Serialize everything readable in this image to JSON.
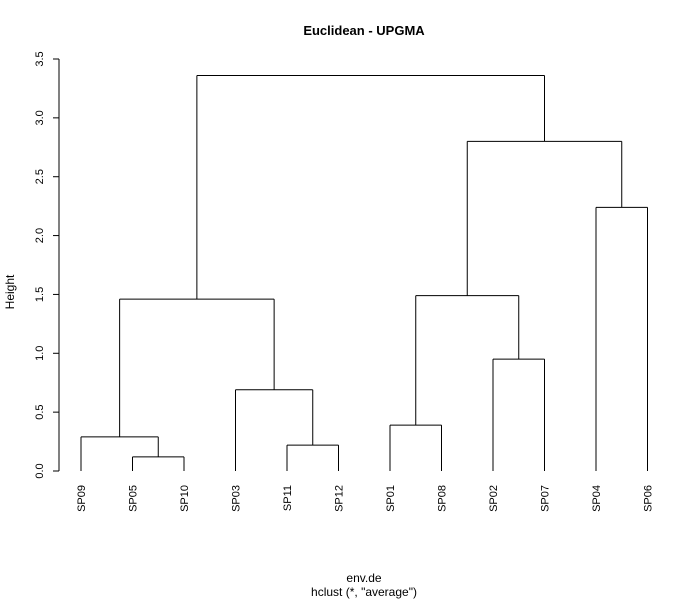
{
  "chart_data": {
    "type": "dendrogram",
    "title": "Euclidean - UPGMA",
    "xlabel": "env.de",
    "sublabel": "hclust (*, \"average\")",
    "ylabel": "Height",
    "ylim": [
      0,
      3.5
    ],
    "yticks": [
      0.0,
      0.5,
      1.0,
      1.5,
      2.0,
      2.5,
      3.0,
      3.5
    ],
    "ytick_labels": [
      "0.0",
      "0.5",
      "1.0",
      "1.5",
      "2.0",
      "2.5",
      "3.0",
      "3.5"
    ],
    "leaves": [
      "SP09",
      "SP05",
      "SP10",
      "SP03",
      "SP11",
      "SP12",
      "SP01",
      "SP08",
      "SP02",
      "SP07",
      "SP04",
      "SP06"
    ],
    "merges": [
      {
        "left": "SP05",
        "right": "SP10",
        "height": 0.12
      },
      {
        "left": "SP11",
        "right": "SP12",
        "height": 0.22
      },
      {
        "left": "SP09",
        "right": "SP05+SP10",
        "height": 0.29
      },
      {
        "left": "SP01",
        "right": "SP08",
        "height": 0.39
      },
      {
        "left": "SP03",
        "right": "SP11+SP12",
        "height": 0.69
      },
      {
        "left": "SP02",
        "right": "SP07",
        "height": 0.95
      },
      {
        "left": "SP09+SP05+SP10",
        "right": "SP03+SP11+SP12",
        "height": 1.46
      },
      {
        "left": "SP01+SP08",
        "right": "SP02+SP07",
        "height": 1.49
      },
      {
        "left": "SP04",
        "right": "SP06",
        "height": 2.24
      },
      {
        "left": "SP01+SP08+SP02+SP07",
        "right": "SP04+SP06",
        "height": 2.8
      },
      {
        "left": "SP09+SP05+SP10+SP03+SP11+SP12",
        "right": "SP01+SP08+SP02+SP07+SP04+SP06",
        "height": 3.36
      }
    ]
  }
}
